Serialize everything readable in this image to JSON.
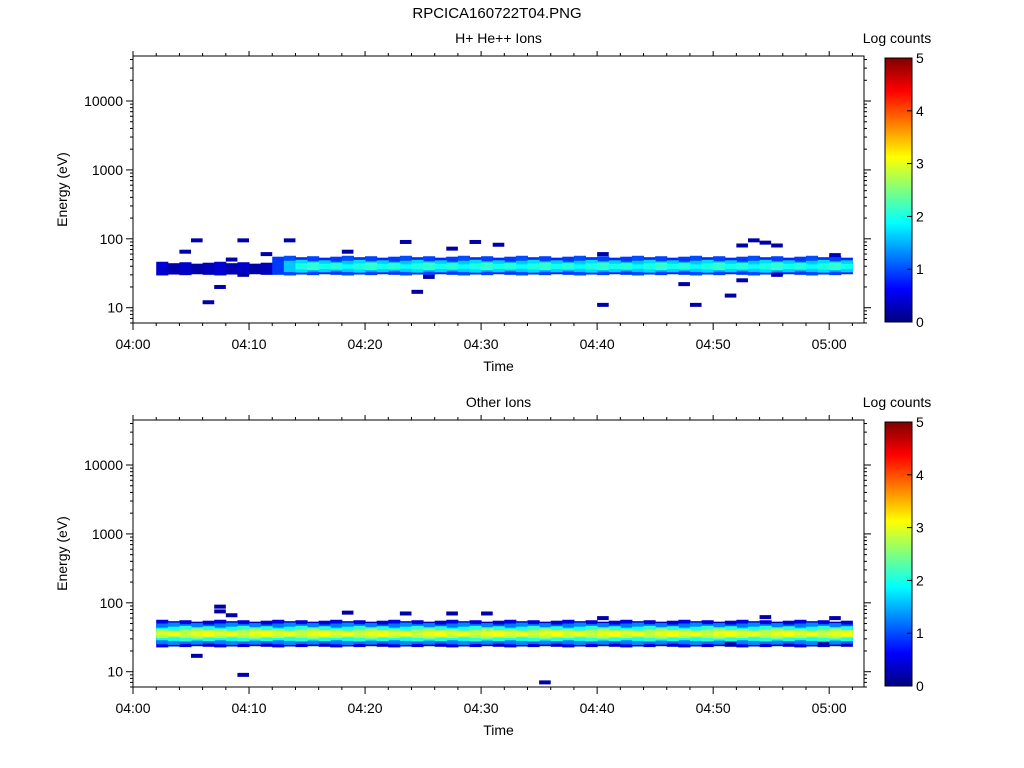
{
  "page_title": "RPCICA160722T04.PNG",
  "colormap": [
    "#00007f",
    "#0000ff",
    "#007fff",
    "#00ffff",
    "#7fff7f",
    "#ffff00",
    "#ff7f00",
    "#ff0000",
    "#7f0000"
  ],
  "chart_data": [
    {
      "type": "heatmap",
      "title": "H+ He++ Ions",
      "xlabel": "Time",
      "ylabel": "Energy (eV)",
      "xlim": [
        "04:00",
        "05:03"
      ],
      "ylim": [
        6,
        45000
      ],
      "yscale": "log",
      "x_ticks": [
        "04:00",
        "04:10",
        "04:20",
        "04:30",
        "04:40",
        "04:50",
        "05:00"
      ],
      "y_ticks": [
        "10",
        "100",
        "1000",
        "10000"
      ],
      "colorbar": {
        "label": "Log counts",
        "range": [
          0,
          5
        ],
        "ticks": [
          "0",
          "1",
          "2",
          "3",
          "4",
          "5"
        ]
      },
      "bands": [
        {
          "t_start": "04:02",
          "t_end": "04:12",
          "e_low": 30,
          "e_high": 45,
          "log_counts": 0.3
        },
        {
          "t_start": "04:12",
          "t_end": "05:02",
          "e_low": 30,
          "e_high": 55,
          "log_counts": 0.9
        },
        {
          "t_start": "04:13",
          "t_end": "05:02",
          "e_low": 33,
          "e_high": 48,
          "log_counts": 1.6
        },
        {
          "t_start": "04:14",
          "t_end": "05:02",
          "e_low": 36,
          "e_high": 44,
          "log_counts": 2.0
        }
      ],
      "cells": [
        {
          "t": "04:03",
          "e": 38,
          "log_counts": 0.2
        },
        {
          "t": "04:04",
          "e": 65,
          "log_counts": 0.2
        },
        {
          "t": "04:05",
          "e": 95,
          "log_counts": 0.2
        },
        {
          "t": "04:06",
          "e": 12,
          "log_counts": 0.2
        },
        {
          "t": "04:07",
          "e": 20,
          "log_counts": 0.2
        },
        {
          "t": "04:08",
          "e": 50,
          "log_counts": 0.2
        },
        {
          "t": "04:09",
          "e": 95,
          "log_counts": 0.2
        },
        {
          "t": "04:09",
          "e": 30,
          "log_counts": 0.2
        },
        {
          "t": "04:11",
          "e": 60,
          "log_counts": 0.2
        },
        {
          "t": "04:13",
          "e": 95,
          "log_counts": 0.2
        },
        {
          "t": "04:18",
          "e": 65,
          "log_counts": 0.2
        },
        {
          "t": "04:23",
          "e": 90,
          "log_counts": 0.2
        },
        {
          "t": "04:24",
          "e": 17,
          "log_counts": 0.2
        },
        {
          "t": "04:25",
          "e": 28,
          "log_counts": 0.2
        },
        {
          "t": "04:27",
          "e": 72,
          "log_counts": 0.2
        },
        {
          "t": "04:29",
          "e": 90,
          "log_counts": 0.2
        },
        {
          "t": "04:31",
          "e": 82,
          "log_counts": 0.2
        },
        {
          "t": "04:40",
          "e": 11,
          "log_counts": 0.2
        },
        {
          "t": "04:40",
          "e": 60,
          "log_counts": 0.2
        },
        {
          "t": "04:47",
          "e": 22,
          "log_counts": 0.2
        },
        {
          "t": "04:48",
          "e": 11,
          "log_counts": 0.2
        },
        {
          "t": "04:51",
          "e": 15,
          "log_counts": 0.2
        },
        {
          "t": "04:52",
          "e": 25,
          "log_counts": 0.2
        },
        {
          "t": "04:52",
          "e": 80,
          "log_counts": 0.2
        },
        {
          "t": "04:53",
          "e": 95,
          "log_counts": 0.2
        },
        {
          "t": "04:54",
          "e": 88,
          "log_counts": 0.2
        },
        {
          "t": "04:55",
          "e": 80,
          "log_counts": 0.2
        },
        {
          "t": "04:55",
          "e": 30,
          "log_counts": 0.2
        },
        {
          "t": "05:00",
          "e": 58,
          "log_counts": 0.3
        }
      ]
    },
    {
      "type": "heatmap",
      "title": "Other Ions",
      "xlabel": "Time",
      "ylabel": "Energy (eV)",
      "xlim": [
        "04:00",
        "05:03"
      ],
      "ylim": [
        6,
        45000
      ],
      "yscale": "log",
      "x_ticks": [
        "04:00",
        "04:10",
        "04:20",
        "04:30",
        "04:40",
        "04:50",
        "05:00"
      ],
      "y_ticks": [
        "10",
        "100",
        "1000",
        "10000"
      ],
      "colorbar": {
        "label": "Log counts",
        "range": [
          0,
          5
        ],
        "ticks": [
          "0",
          "1",
          "2",
          "3",
          "4",
          "5"
        ]
      },
      "bands": [
        {
          "t_start": "04:02",
          "t_end": "05:02",
          "e_low": 23,
          "e_high": 55,
          "log_counts": 0.4
        },
        {
          "t_start": "04:02",
          "t_end": "05:02",
          "e_low": 25,
          "e_high": 50,
          "log_counts": 1.2
        },
        {
          "t_start": "04:02",
          "t_end": "05:02",
          "e_low": 28,
          "e_high": 45,
          "log_counts": 2.0
        },
        {
          "t_start": "04:02",
          "t_end": "05:02",
          "e_low": 31,
          "e_high": 41,
          "log_counts": 2.7
        },
        {
          "t_start": "04:02",
          "t_end": "05:02",
          "e_low": 33,
          "e_high": 38,
          "log_counts": 3.0
        }
      ],
      "cells": [
        {
          "t": "04:05",
          "e": 17,
          "log_counts": 0.2
        },
        {
          "t": "04:07",
          "e": 88,
          "log_counts": 0.2
        },
        {
          "t": "04:07",
          "e": 75,
          "log_counts": 0.2
        },
        {
          "t": "04:08",
          "e": 66,
          "log_counts": 0.2
        },
        {
          "t": "04:09",
          "e": 9,
          "log_counts": 0.2
        },
        {
          "t": "04:18",
          "e": 72,
          "log_counts": 0.2
        },
        {
          "t": "04:23",
          "e": 70,
          "log_counts": 0.2
        },
        {
          "t": "04:27",
          "e": 70,
          "log_counts": 0.2
        },
        {
          "t": "04:30",
          "e": 70,
          "log_counts": 0.2
        },
        {
          "t": "04:35",
          "e": 7,
          "log_counts": 0.2
        },
        {
          "t": "04:40",
          "e": 60,
          "log_counts": 0.2
        },
        {
          "t": "04:51",
          "e": 25,
          "log_counts": 0.2
        },
        {
          "t": "04:54",
          "e": 62,
          "log_counts": 0.2
        },
        {
          "t": "04:59",
          "e": 25,
          "log_counts": 0.2
        },
        {
          "t": "05:00",
          "e": 60,
          "log_counts": 0.2
        }
      ]
    }
  ]
}
